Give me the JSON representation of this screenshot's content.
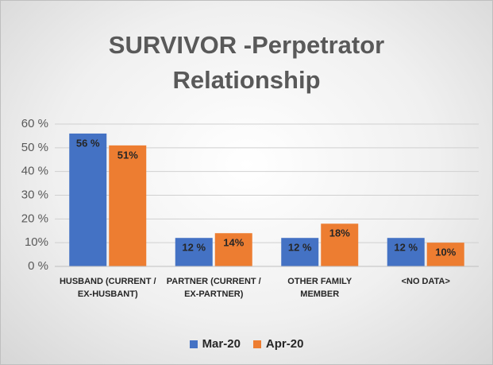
{
  "chart_data": {
    "type": "bar",
    "title": "SURVIVOR -Perpetrator Relationship",
    "categories": [
      "HUSBAND (CURRENT / EX-HUSBANT)",
      "PARTNER (CURRENT / EX-PARTNER)",
      "OTHER FAMILY MEMBER",
      "<NO DATA>"
    ],
    "series": [
      {
        "name": "Mar-20",
        "color": "#4472c4",
        "values": [
          56,
          12,
          12,
          12
        ],
        "value_labels": [
          "56 %",
          "12 %",
          "12 %",
          "12 %"
        ]
      },
      {
        "name": "Apr-20",
        "color": "#ed7d31",
        "values": [
          51,
          14,
          18,
          10
        ],
        "value_labels": [
          "51%",
          "14%",
          "18%",
          "10%"
        ]
      }
    ],
    "ylim": [
      0,
      60
    ],
    "yticks": [
      {
        "value": 0,
        "label": "0 %"
      },
      {
        "value": 10,
        "label": "10%"
      },
      {
        "value": 20,
        "label": "20 %"
      },
      {
        "value": 30,
        "label": "30 %"
      },
      {
        "value": 40,
        "label": "40 %"
      },
      {
        "value": 50,
        "label": "50 %"
      },
      {
        "value": 60,
        "label": "60 %"
      }
    ],
    "grid": true
  }
}
